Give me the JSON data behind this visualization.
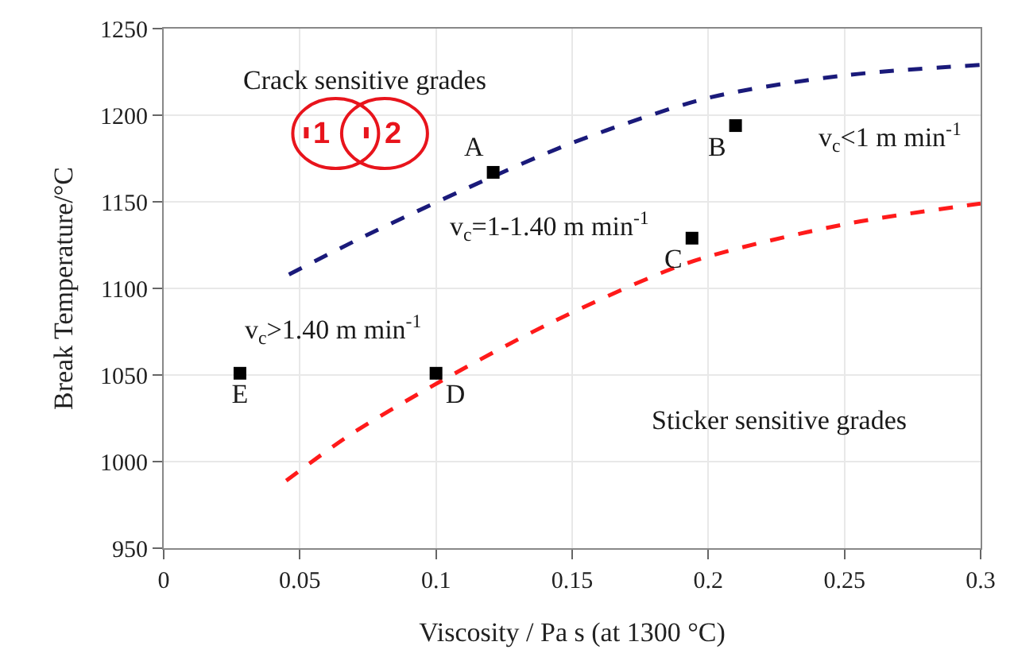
{
  "chart_data": {
    "type": "line",
    "xlabel": "Viscosity / Pa s (at 1300 °C)",
    "ylabel": "Break Temperature/°C",
    "xlim": [
      0,
      0.3
    ],
    "xticks": [
      0,
      0.05,
      0.1,
      0.15,
      0.2,
      0.25,
      0.3
    ],
    "ylim": [
      950,
      1250
    ],
    "yticks": [
      950,
      1000,
      1050,
      1100,
      1150,
      1200,
      1250
    ],
    "grid": true,
    "series": [
      {
        "color": "#1a1a7a",
        "line_style": "dashed",
        "x": [
          0.046,
          0.071,
          0.113,
          0.15,
          0.2,
          0.25,
          0.3
        ],
        "values": [
          1108,
          1128,
          1159,
          1184,
          1210,
          1223,
          1229
        ]
      },
      {
        "color": "#ff1a1a",
        "line_style": "dashed",
        "x": [
          0.045,
          0.068,
          0.099,
          0.142,
          0.193,
          0.25,
          0.3
        ],
        "values": [
          989,
          1015,
          1044,
          1080,
          1115,
          1137,
          1149
        ]
      },
      {
        "type": "scatter",
        "color": "#000000",
        "marker": "square",
        "x": [
          0.121,
          0.21,
          0.194,
          0.1,
          0.028
        ],
        "values": [
          1167,
          1194,
          1129,
          1051,
          1051
        ],
        "value_labels": [
          "A",
          "B",
          "C",
          "D",
          "E"
        ]
      }
    ],
    "annotations": [
      "v$_{c}$<1 m min$^{-1}$",
      "v$_{c}$=1-1.40 m min$^{-1}$",
      "v$_{c}$>1.40 m min$^{-1}$",
      "Crack sensitive grades",
      "Sticker sensitive grades",
      "1",
      "2"
    ]
  }
}
